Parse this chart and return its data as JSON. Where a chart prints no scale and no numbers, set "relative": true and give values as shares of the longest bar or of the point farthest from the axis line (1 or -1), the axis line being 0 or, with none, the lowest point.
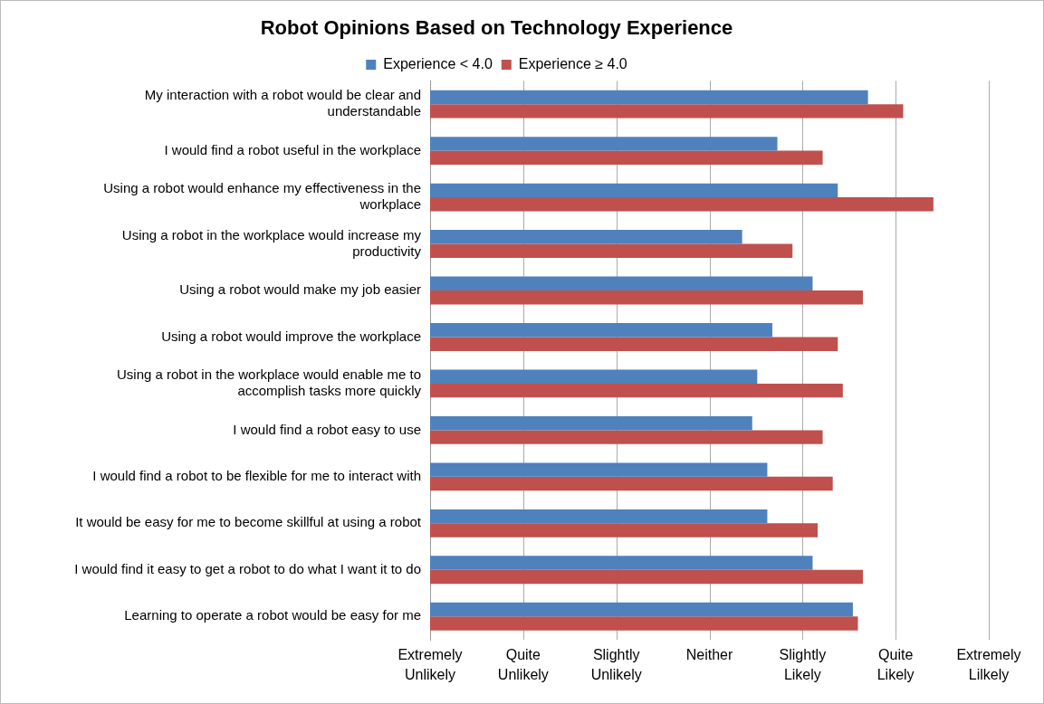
{
  "chart_data": {
    "type": "bar",
    "orientation": "horizontal",
    "relative": true,
    "title": "Robot Opinions Based on Technology Experience",
    "categories": [
      "My interaction with a robot would be clear and understandable",
      "I would find a robot useful in the workplace",
      "Using a robot would enhance my effectiveness in the workplace",
      "Using a robot in the workplace would increase my productivity",
      "Using a robot would make my job easier",
      "Using a robot would improve the workplace",
      "Using a robot in the workplace would enable me to accomplish tasks more quickly",
      "I would find a robot easy to use",
      "I would find a robot to be flexible for me to interact with",
      "It would be easy for me to become skillful at using a robot",
      "I would find it easy to get a robot to do what I want it to do",
      "Learning to operate a robot would be easy for me"
    ],
    "series": [
      {
        "name": "Experience < 4.0",
        "color": "#4f81bd",
        "values": [
          0.87,
          0.69,
          0.81,
          0.62,
          0.76,
          0.68,
          0.65,
          0.64,
          0.67,
          0.67,
          0.76,
          0.84
        ]
      },
      {
        "name": "Experience ≥ 4.0",
        "color": "#c0504d",
        "values": [
          0.94,
          0.78,
          1,
          0.72,
          0.86,
          0.81,
          0.82,
          0.78,
          0.8,
          0.77,
          0.86,
          0.85
        ]
      }
    ],
    "annotations": [
      "Extremely Unlikely",
      "Quite Unlikely",
      "Slightly Unlikely",
      "Neither",
      "Slightly Likely",
      "Quite Likely",
      "Extremely Lilkely"
    ],
    "grid": "x",
    "legend": "top"
  }
}
